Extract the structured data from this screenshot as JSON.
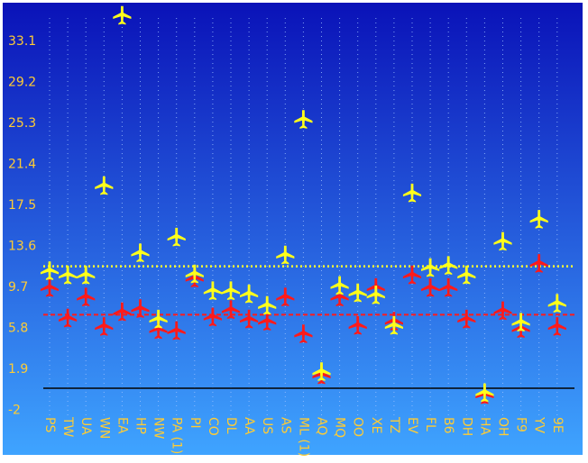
{
  "chart_data": {
    "type": "scatter",
    "title": "",
    "xlabel": "",
    "ylabel": "",
    "ylim": [
      -2,
      35.5
    ],
    "y_ticks": [
      "-2",
      "1.9",
      "5.8",
      "9.7",
      "13.6",
      "17.5",
      "21.4",
      "25.3",
      "29.2",
      "33.1"
    ],
    "grid": "vertical dotted",
    "categories": [
      "PS",
      "TW",
      "UA",
      "WN",
      "EA",
      "HP",
      "NW",
      "PA (1)",
      "PI",
      "CO",
      "DL",
      "AA",
      "US",
      "AS",
      "ML (1)",
      "AQ",
      "MQ",
      "OO",
      "XE",
      "TZ",
      "EV",
      "FL",
      "B6",
      "DH",
      "HA",
      "OH",
      "F9",
      "YV",
      "9E"
    ],
    "series": [
      {
        "marker": "yellow-plane",
        "values": [
          11.2,
          10.8,
          10.8,
          19.3,
          35.5,
          12.9,
          6.6,
          14.4,
          10.9,
          9.3,
          9.3,
          9.0,
          7.9,
          12.7,
          25.6,
          1.6,
          9.8,
          9.1,
          8.9,
          6.0,
          18.6,
          11.5,
          11.7,
          10.8,
          -0.4,
          14.0,
          6.3,
          16.1,
          8.1
        ]
      },
      {
        "marker": "red-plane",
        "values": [
          9.6,
          6.7,
          8.7,
          5.9,
          7.3,
          7.6,
          5.6,
          5.5,
          10.5,
          6.8,
          7.5,
          6.6,
          6.4,
          8.7,
          5.2,
          1.3,
          8.7,
          6.0,
          9.6,
          6.4,
          10.8,
          9.6,
          9.6,
          6.6,
          -0.6,
          7.4,
          5.7,
          11.9,
          5.9
        ]
      }
    ],
    "reference_lines": [
      {
        "value": 11.6,
        "color": "#ffff33",
        "style": "dotted"
      },
      {
        "value": 7.0,
        "color": "#ff1a1a",
        "style": "dashed"
      },
      {
        "value": 0,
        "color": "#000000",
        "style": "solid"
      }
    ],
    "colors": {
      "bg_top": "#0a12b8",
      "bg_bottom": "#3fa4ff",
      "label": "#ffcc33",
      "yellow_plane": "#ffff1a",
      "red_plane": "#ff1a1a"
    }
  }
}
